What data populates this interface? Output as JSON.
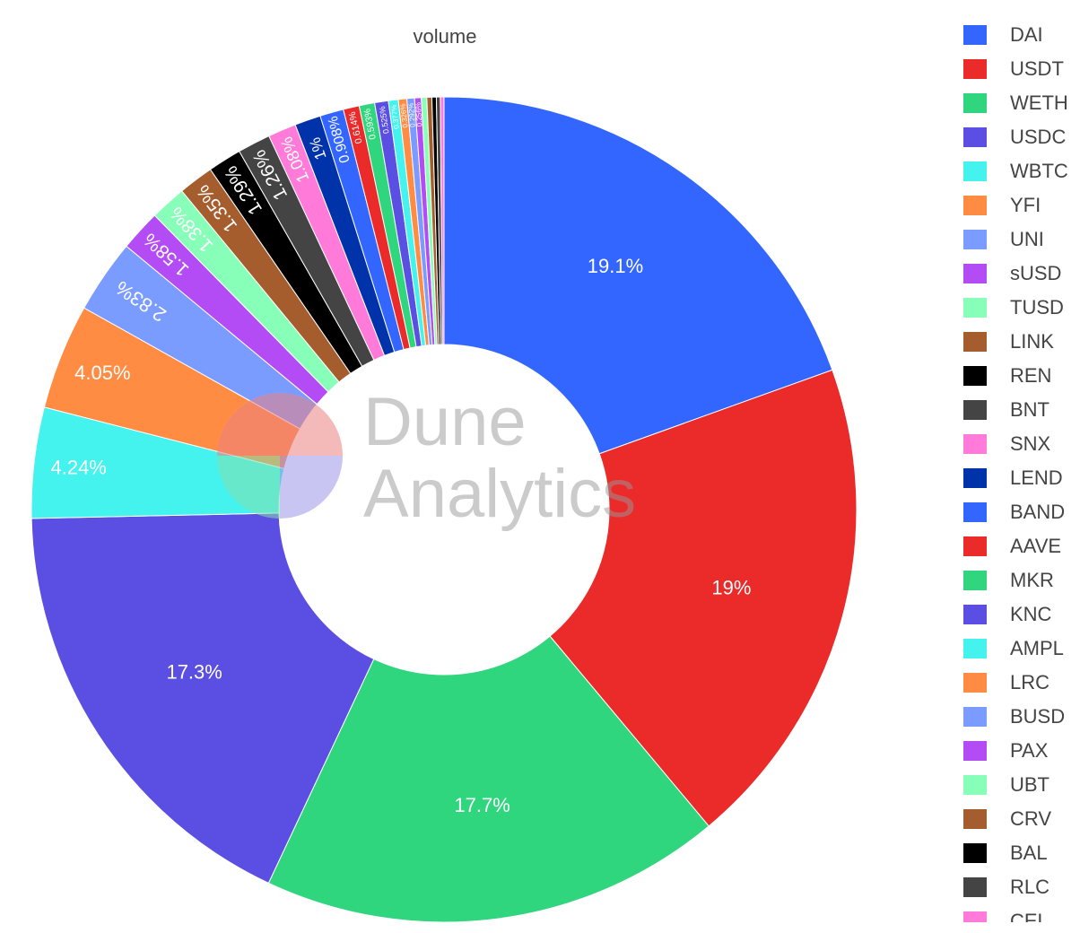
{
  "chart_data": {
    "type": "pie",
    "hole": true,
    "title": "volume",
    "categories": [
      "DAI",
      "USDT",
      "WETH",
      "USDC",
      "WBTC",
      "YFI",
      "UNI",
      "sUSD",
      "TUSD",
      "LINK",
      "REN",
      "BNT",
      "SNX",
      "LEND",
      "BAND",
      "AAVE",
      "MKR",
      "KNC",
      "AMPL",
      "LRC",
      "BUSD",
      "PAX",
      "UBT",
      "CRV",
      "BAL",
      "RLC",
      "CEL"
    ],
    "values": [
      19.1,
      19,
      17.7,
      17.3,
      4.24,
      4.05,
      2.83,
      1.58,
      1.38,
      1.35,
      1.29,
      1.26,
      1.08,
      1,
      0.908,
      0.614,
      0.593,
      0.525,
      0.377,
      0.326,
      0.292,
      0.256,
      0.21,
      0.19,
      0.17,
      0.15,
      0.14
    ],
    "labels": [
      "19.1%",
      "19%",
      "17.7%",
      "17.3%",
      "4.24%",
      "4.05%",
      "2.83%",
      "1.58%",
      "1.38%",
      "1.35%",
      "1.29%",
      "1.26%",
      "1.08%",
      "1%",
      "0.908%",
      "0.614%",
      "0.593%",
      "0.525%",
      "0.377%",
      "0.326%",
      "0.292%",
      "0.256%",
      "",
      "",
      "",
      "",
      ""
    ],
    "colors": [
      "#3366ff",
      "#eb2a2a",
      "#2fd67d",
      "#5b4fe3",
      "#44f2ee",
      "#ff8c42",
      "#7a9bff",
      "#b44cf5",
      "#88ffb8",
      "#a65d2e",
      "#000000",
      "#444444",
      "#ff7ad9",
      "#0033aa",
      "#3366ff",
      "#eb2a2a",
      "#2fd67d",
      "#5b4fe3",
      "#44f2ee",
      "#ff8c42",
      "#7a9bff",
      "#b44cf5",
      "#88ffb8",
      "#a65d2e",
      "#000000",
      "#444444",
      "#ff7ad9"
    ],
    "tail_colors": [
      "#3366ff",
      "#eb2a2a",
      "#2fd67d",
      "#5b4fe3",
      "#44f2ee",
      "#ff8c42",
      "#7a9bff",
      "#b44cf5",
      "#88ffb8",
      "#a65d2e",
      "#000000",
      "#444444",
      "#ff7ad9",
      "#0033aa"
    ],
    "legend_placement": "right"
  },
  "legend": {
    "items": [
      {
        "label": "DAI",
        "color": "#3366ff"
      },
      {
        "label": "USDT",
        "color": "#eb2a2a"
      },
      {
        "label": "WETH",
        "color": "#2fd67d"
      },
      {
        "label": "USDC",
        "color": "#5b4fe3"
      },
      {
        "label": "WBTC",
        "color": "#44f2ee"
      },
      {
        "label": "YFI",
        "color": "#ff8c42"
      },
      {
        "label": "UNI",
        "color": "#7a9bff"
      },
      {
        "label": "sUSD",
        "color": "#b44cf5"
      },
      {
        "label": "TUSD",
        "color": "#88ffb8"
      },
      {
        "label": "LINK",
        "color": "#a65d2e"
      },
      {
        "label": "REN",
        "color": "#000000"
      },
      {
        "label": "BNT",
        "color": "#444444"
      },
      {
        "label": "SNX",
        "color": "#ff7ad9"
      },
      {
        "label": "LEND",
        "color": "#0033aa"
      },
      {
        "label": "BAND",
        "color": "#3366ff"
      },
      {
        "label": "AAVE",
        "color": "#eb2a2a"
      },
      {
        "label": "MKR",
        "color": "#2fd67d"
      },
      {
        "label": "KNC",
        "color": "#5b4fe3"
      },
      {
        "label": "AMPL",
        "color": "#44f2ee"
      },
      {
        "label": "LRC",
        "color": "#ff8c42"
      },
      {
        "label": "BUSD",
        "color": "#7a9bff"
      },
      {
        "label": "PAX",
        "color": "#b44cf5"
      },
      {
        "label": "UBT",
        "color": "#88ffb8"
      },
      {
        "label": "CRV",
        "color": "#a65d2e"
      },
      {
        "label": "BAL",
        "color": "#000000"
      },
      {
        "label": "RLC",
        "color": "#444444"
      },
      {
        "label": "CEL",
        "color": "#ff7ad9"
      }
    ]
  },
  "watermark": {
    "line1": "Dune",
    "line2": "Analytics",
    "logo_colors": [
      "#eb2a2a",
      "#2fd67d",
      "#5b4fe3"
    ]
  }
}
